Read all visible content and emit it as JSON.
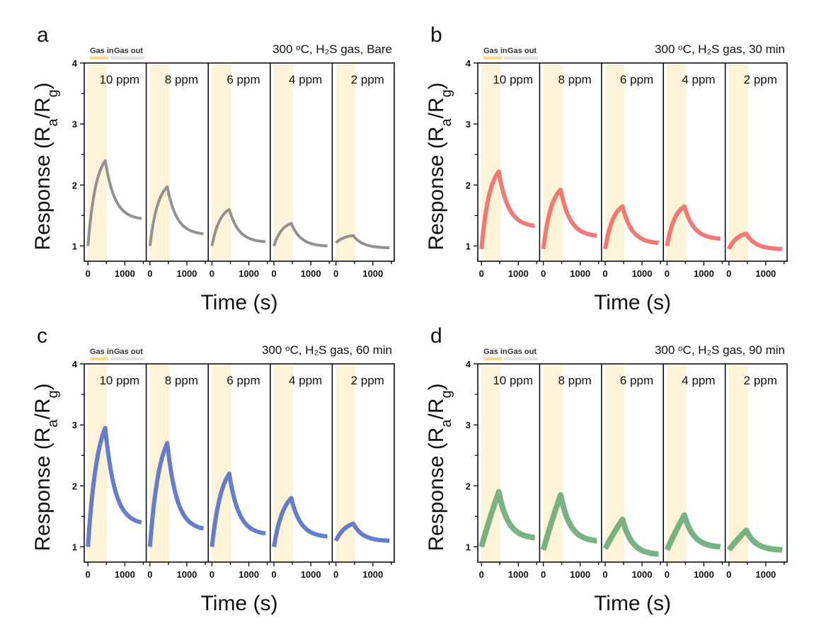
{
  "chart_data": [
    {
      "type": "line",
      "panel_label": "a",
      "title": "300 ᵒC, H₂S gas, Bare",
      "color": "#7f7f7f",
      "series": [
        {
          "name": "10 ppm",
          "start": 1.0,
          "peak": 2.4,
          "end": 1.45
        },
        {
          "name": "8 ppm",
          "start": 1.0,
          "peak": 1.97,
          "end": 1.2
        },
        {
          "name": "6 ppm",
          "start": 1.0,
          "peak": 1.6,
          "end": 1.07
        },
        {
          "name": "4 ppm",
          "start": 1.0,
          "peak": 1.37,
          "end": 1.0
        },
        {
          "name": "2 ppm",
          "start": 1.05,
          "peak": 1.17,
          "end": 0.97
        }
      ]
    },
    {
      "type": "line",
      "panel_label": "b",
      "title": "300 ᵒC, H₂S gas, 30 min",
      "color": "#f06262",
      "series": [
        {
          "name": "10 ppm",
          "start": 0.95,
          "peak": 2.22,
          "end": 1.33
        },
        {
          "name": "8 ppm",
          "start": 0.95,
          "peak": 1.92,
          "end": 1.17
        },
        {
          "name": "6 ppm",
          "start": 0.95,
          "peak": 1.65,
          "end": 1.05
        },
        {
          "name": "4 ppm",
          "start": 1.0,
          "peak": 1.65,
          "end": 1.12
        },
        {
          "name": "2 ppm",
          "start": 0.95,
          "peak": 1.2,
          "end": 0.95
        }
      ]
    },
    {
      "type": "line",
      "panel_label": "c",
      "title": "300 ᵒC, H₂S gas, 60 min",
      "color": "#4a66c6",
      "series": [
        {
          "name": "10 ppm",
          "start": 1.0,
          "peak": 2.95,
          "end": 1.4
        },
        {
          "name": "8 ppm",
          "start": 1.0,
          "peak": 2.7,
          "end": 1.3
        },
        {
          "name": "6 ppm",
          "start": 1.0,
          "peak": 2.2,
          "end": 1.22
        },
        {
          "name": "4 ppm",
          "start": 1.0,
          "peak": 1.8,
          "end": 1.17
        },
        {
          "name": "2 ppm",
          "start": 1.1,
          "peak": 1.38,
          "end": 1.1
        }
      ]
    },
    {
      "type": "line",
      "panel_label": "d",
      "title": "300 ᵒC, H₂S gas, 90 min",
      "color": "#62a56e",
      "series": [
        {
          "name": "10 ppm",
          "start": 1.0,
          "peak": 1.9,
          "end": 1.15
        },
        {
          "name": "8 ppm",
          "start": 0.95,
          "peak": 1.85,
          "end": 1.1
        },
        {
          "name": "6 ppm",
          "start": 0.97,
          "peak": 1.45,
          "end": 0.88
        },
        {
          "name": "4 ppm",
          "start": 0.95,
          "peak": 1.52,
          "end": 1.0
        },
        {
          "name": "2 ppm",
          "start": 0.95,
          "peak": 1.27,
          "end": 0.95
        }
      ]
    }
  ],
  "common": {
    "xlabel": "Time (s)",
    "ylabel": {
      "pre": "Response (R",
      "sub1": "a",
      "mid": "/R",
      "sub2": "g",
      "post": ")"
    },
    "yticks": [
      "1",
      "2",
      "3",
      "4"
    ],
    "ylim": [
      0.75,
      4.0
    ],
    "xticks": [
      "0",
      "1000"
    ],
    "xlim": [
      -100,
      1580
    ],
    "gas_in_interval": [
      0,
      520
    ],
    "legend": {
      "gas_in": "Gas in",
      "gas_out": "Gas out"
    },
    "colors": {
      "gas_in_shade": "#fdf3d9",
      "gas_in_legend": "#f8dc8a",
      "gas_out_legend": "#e2e2e2"
    }
  }
}
